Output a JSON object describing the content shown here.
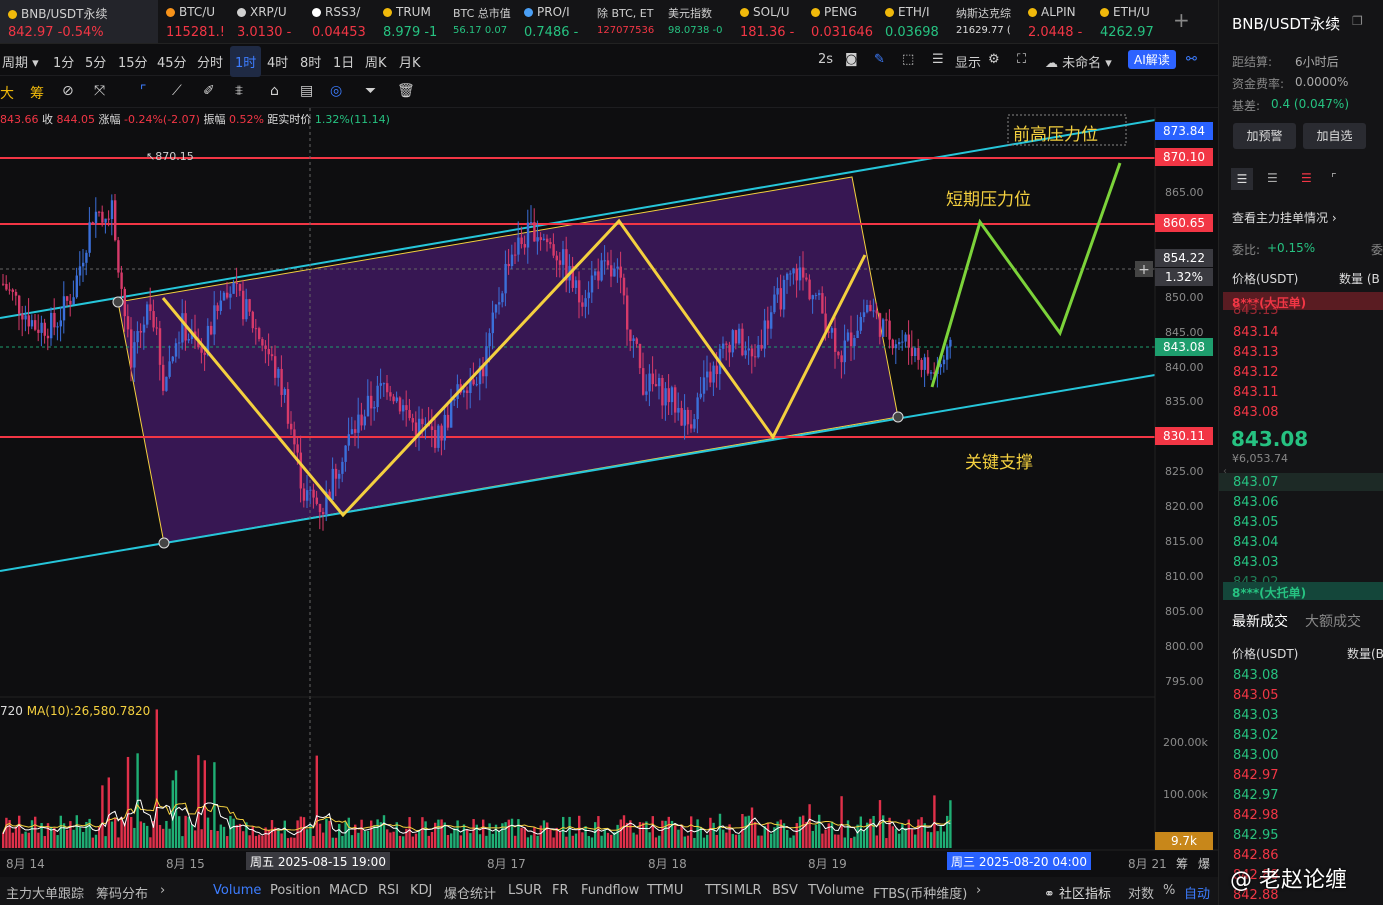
{
  "tickers": [
    {
      "name": "BNB/USDT永续",
      "price": "842.97",
      "change": "-0.54%",
      "dir": "down",
      "icon_color": "#f0b90b"
    },
    {
      "name": "BTC/U",
      "price": "115281.!",
      "change": "",
      "dir": "down",
      "icon_color": "#f7931a"
    },
    {
      "name": "XRP/U",
      "price": "3.0130",
      "change": "-",
      "dir": "down",
      "icon_color": "#d0d0d0"
    },
    {
      "name": "RSS3/",
      "price": "0.04453",
      "change": "",
      "dir": "down",
      "icon_color": "#ffffff"
    },
    {
      "name": "TRUM",
      "price": "8.979",
      "change": "-1",
      "dir": "up",
      "icon_color": "#f0b90b"
    },
    {
      "name": "BTC 总市值",
      "price": "56.17",
      "change": "0.07",
      "dir": "up",
      "icon_color": ""
    },
    {
      "name": "PRO/I",
      "price": "0.7486",
      "change": "-",
      "dir": "up",
      "icon_color": "#4a9ff5"
    },
    {
      "name": "除 BTC, ET",
      "price": "127077536",
      "change": "",
      "dir": "down",
      "icon_color": ""
    },
    {
      "name": "美元指数",
      "price": "98.0738",
      "change": "-0",
      "dir": "up",
      "icon_color": ""
    },
    {
      "name": "SOL/U",
      "price": "181.36",
      "change": "-",
      "dir": "down",
      "icon_color": "#f0b90b"
    },
    {
      "name": "PENG",
      "price": "0.031646",
      "change": "",
      "dir": "down",
      "icon_color": "#f0b90b"
    },
    {
      "name": "ETH/I",
      "price": "0.03698",
      "change": "",
      "dir": "up",
      "icon_color": "#f0b90b"
    },
    {
      "name": "纳斯达克综",
      "price": "21629.77",
      "change": "(",
      "dir": "neutral",
      "icon_color": ""
    },
    {
      "name": "ALPIN",
      "price": "2.0448",
      "change": "-",
      "dir": "down",
      "icon_color": "#f0b90b"
    },
    {
      "name": "ETH/U",
      "price": "4262.97",
      "change": "",
      "dir": "up",
      "icon_color": "#f0b90b"
    }
  ],
  "add_tab": "+",
  "toolbar1": {
    "period": "周期",
    "intervals": [
      "1分",
      "5分",
      "15分",
      "45分",
      "分时",
      "1时",
      "4时",
      "8时",
      "1日",
      "周K",
      "月K"
    ],
    "active_interval": "1时",
    "refresh": "2s",
    "display": "显示",
    "layout_name": "未命名",
    "ai": "AI解读"
  },
  "toolbar2": {
    "label_a": "大",
    "label_b": "筹"
  },
  "ohlc": {
    "open": "843.66",
    "close_label": "收",
    "close": "844.05",
    "change_label": "涨幅",
    "change": "-0.24%(-2.07)",
    "amp_label": "振幅",
    "amp": "0.52%",
    "dist_label": "距实时价",
    "dist": "1.32%(11.14)"
  },
  "price_axis": [
    "865.00",
    "855.00",
    "850.00",
    "845.00",
    "840.00",
    "835.00",
    "825.00",
    "820.00",
    "815.00",
    "810.00",
    "805.00",
    "800.00",
    "795.00"
  ],
  "price_tags": [
    {
      "value": "873.84",
      "color": "#2962ff"
    },
    {
      "value": "870.10",
      "color": "#f23645"
    },
    {
      "value": "860.65",
      "color": "#f23645"
    },
    {
      "value": "854.22",
      "color": "#3a3a40"
    },
    {
      "value": "1.32%",
      "color": "#3a3a40"
    },
    {
      "value": "843.08",
      "color": "#1e9e6e"
    },
    {
      "value": "830.11",
      "color": "#f23645"
    }
  ],
  "high_marker": "870.15",
  "annotations": {
    "prev_high": "前高压力位",
    "short_term": "短期压力位",
    "key_support": "关键支撑"
  },
  "volume": {
    "ma_left": "720",
    "ma_label": "MA(10):26,580.7820",
    "axis": [
      "200.00k",
      "100.00k"
    ],
    "tag": "9.7k"
  },
  "x_axis": [
    "8月 14",
    "8月 15",
    "8月 17",
    "8月 18",
    "8月 19",
    "8月 21",
    "筹",
    "爆"
  ],
  "crosshair_time": "周五 2025-08-15 19:00",
  "current_time": "周三 2025-08-20 04:00",
  "bottom": {
    "left_items": [
      "主力大单跟踪",
      "筹码分布"
    ],
    "indicators": [
      "Volume",
      "Position",
      "MACD",
      "RSI",
      "KDJ",
      "爆仓统计",
      "LSUR",
      "FR",
      "Fundflow",
      "TTMU",
      "TTSI",
      "MLR",
      "BSV",
      "TVolume",
      "FTBS(币种维度)"
    ],
    "active_indicator": "Volume",
    "community": "社区指标",
    "log": "对数",
    "percent": "%",
    "auto": "自动"
  },
  "right_panel": {
    "symbol": "BNB/USDT永续",
    "settle_label": "距结算:",
    "settle_value": "6小时后",
    "funding_label": "资金费率:",
    "funding_value": "0.0000%",
    "basis_label": "基差:",
    "basis_value": "0.4 (0.047%)",
    "btn_alert": "加预警",
    "btn_fav": "加自选",
    "main_orders": "查看主力挂单情况",
    "ratio_label": "委比:",
    "ratio_value": "+0.15%",
    "ratio_label2": "委",
    "col_price": "价格(USDT)",
    "col_qty": "数量 (B",
    "big_ask": "8***(大压单)",
    "asks": [
      "843.13",
      "843.14",
      "843.13",
      "843.12",
      "843.11",
      "843.08"
    ],
    "last_price": "843.08",
    "last_cny": "¥6,053.74",
    "bids": [
      "843.07",
      "843.06",
      "843.05",
      "843.04",
      "843.03",
      "843.02"
    ],
    "big_bid": "8***(大托单)",
    "tab_latest": "最新成交",
    "tab_large": "大额成交",
    "trades_col_price": "价格(USDT)",
    "trades_col_qty": "数量(B",
    "trades": [
      {
        "p": "843.08",
        "d": "up"
      },
      {
        "p": "843.05",
        "d": "down"
      },
      {
        "p": "843.03",
        "d": "up"
      },
      {
        "p": "843.02",
        "d": "up"
      },
      {
        "p": "843.00",
        "d": "up"
      },
      {
        "p": "842.97",
        "d": "down"
      },
      {
        "p": "842.97",
        "d": "up"
      },
      {
        "p": "842.98",
        "d": "down"
      },
      {
        "p": "842.95",
        "d": "up"
      },
      {
        "p": "842.86",
        "d": "down"
      },
      {
        "p": "842.88",
        "d": "down"
      },
      {
        "p": "842.88",
        "d": "down"
      }
    ]
  },
  "watermark": "@ 老赵论缠"
}
